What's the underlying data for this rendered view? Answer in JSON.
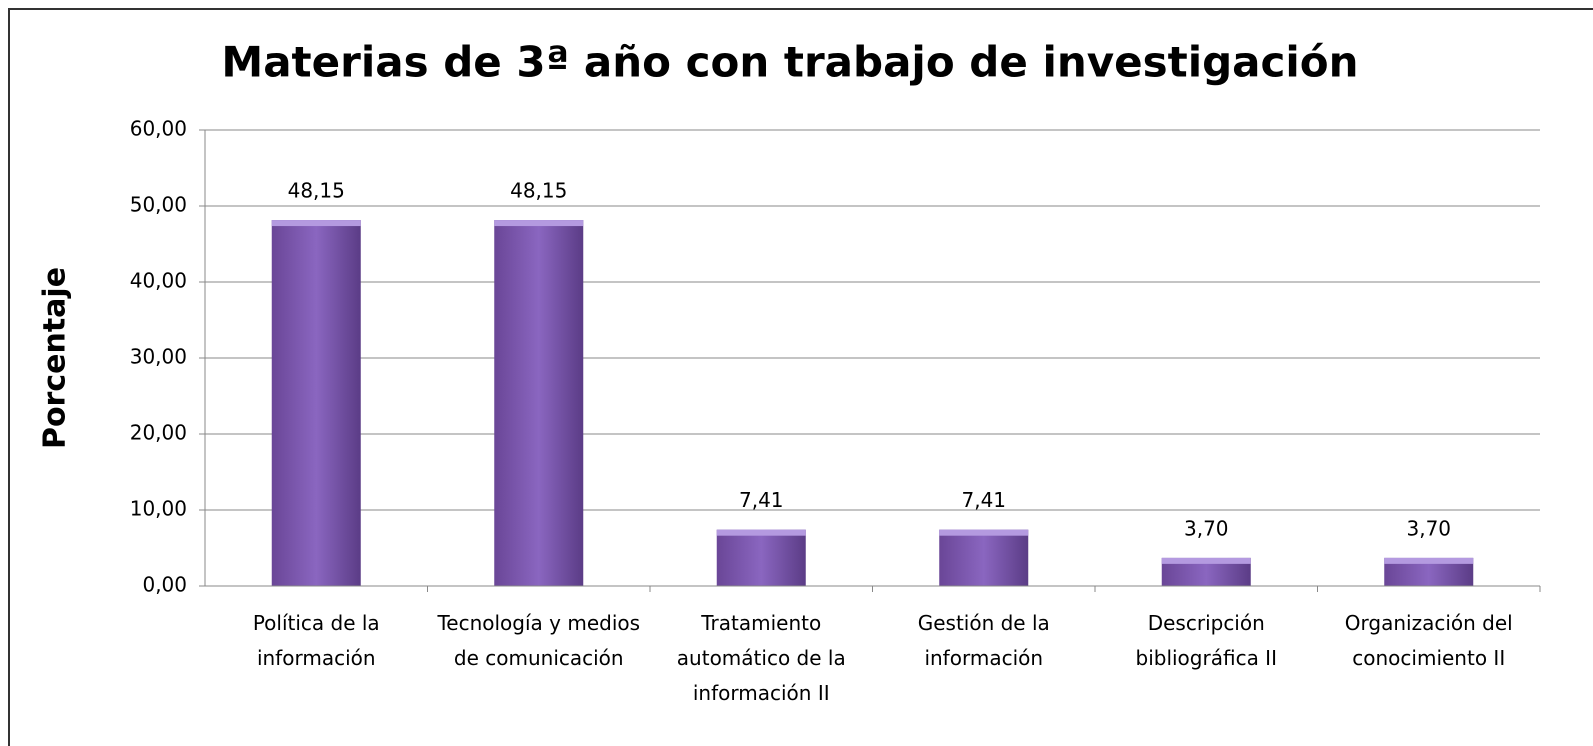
{
  "chart_data": {
    "type": "bar",
    "title": "Materias de 3ª año con trabajo de investigación",
    "ylabel": "Porcentaje",
    "categories": [
      "Política de la información",
      "Tecnología y medios de comunicación",
      "Tratamiento automático de la información II",
      "Gestión de la información",
      "Descripción bibliográfica II",
      "Organización del conocimiento II"
    ],
    "values": [
      48.15,
      48.15,
      7.41,
      7.41,
      3.7,
      3.7
    ],
    "value_labels": [
      "48,15",
      "48,15",
      "7,41",
      "7,41",
      "3,70",
      "3,70"
    ],
    "color": "#7a55ad",
    "ylim": [
      0,
      60
    ],
    "yticks": [
      {
        "value": 0,
        "label": "0,00"
      },
      {
        "value": 10,
        "label": "10,00"
      },
      {
        "value": 20,
        "label": "20,00"
      },
      {
        "value": 30,
        "label": "30,00"
      },
      {
        "value": 40,
        "label": "40,00"
      },
      {
        "value": 50,
        "label": "50,00"
      },
      {
        "value": 60,
        "label": "60,00"
      }
    ],
    "grid": true
  }
}
